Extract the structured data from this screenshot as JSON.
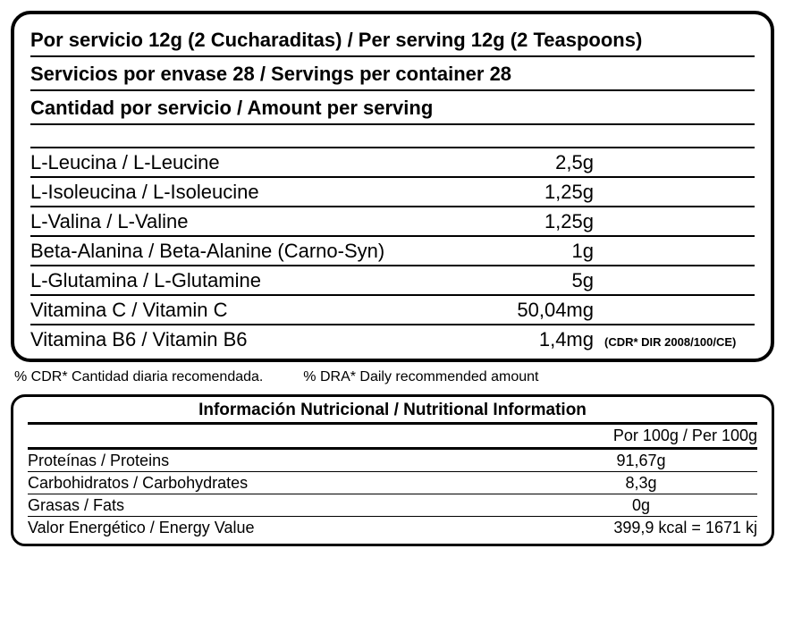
{
  "panel1": {
    "serving_line": "Por servicio 12g (2 Cucharaditas) / Per serving 12g (2 Teaspoons)",
    "servings_per": "Servicios por envase  28 / Servings per container 28",
    "amount_per": "Cantidad por servicio / Amount per serving",
    "ingredients": [
      {
        "name": "L-Leucina / L-Leucine",
        "amount": "2,5g",
        "note": ""
      },
      {
        "name": "L-Isoleucina / L-Isoleucine",
        "amount": "1,25g",
        "note": ""
      },
      {
        "name": "L-Valina / L-Valine",
        "amount": "1,25g",
        "note": ""
      },
      {
        "name": "Beta-Alanina / Beta-Alanine (Carno-Syn)",
        "amount": "1g",
        "note": ""
      },
      {
        "name": "L-Glutamina / L-Glutamine",
        "amount": "5g",
        "note": ""
      },
      {
        "name": "Vitamina C / Vitamin C",
        "amount": "50,04mg",
        "note": ""
      },
      {
        "name": "Vitamina B6 / Vitamin B6",
        "amount": "1,4mg",
        "note": "(CDR* DIR 2008/100/CE)"
      }
    ]
  },
  "footnote": {
    "left": "% CDR* Cantidad diaria recomendada.",
    "right": "% DRA* Daily recommended amount"
  },
  "panel2": {
    "title": "Información Nutricional / Nutritional Information",
    "per_label": "Por 100g / Per 100g",
    "rows": [
      {
        "name": "Proteínas / Proteins",
        "value": "91,67g"
      },
      {
        "name": "Carbohidratos / Carbohydrates",
        "value": "8,3g"
      },
      {
        "name": "Grasas / Fats",
        "value": "0g"
      }
    ],
    "energy": {
      "name": "Valor Energético / Energy Value",
      "value": "399,9 kcal = 1671 kj"
    }
  }
}
